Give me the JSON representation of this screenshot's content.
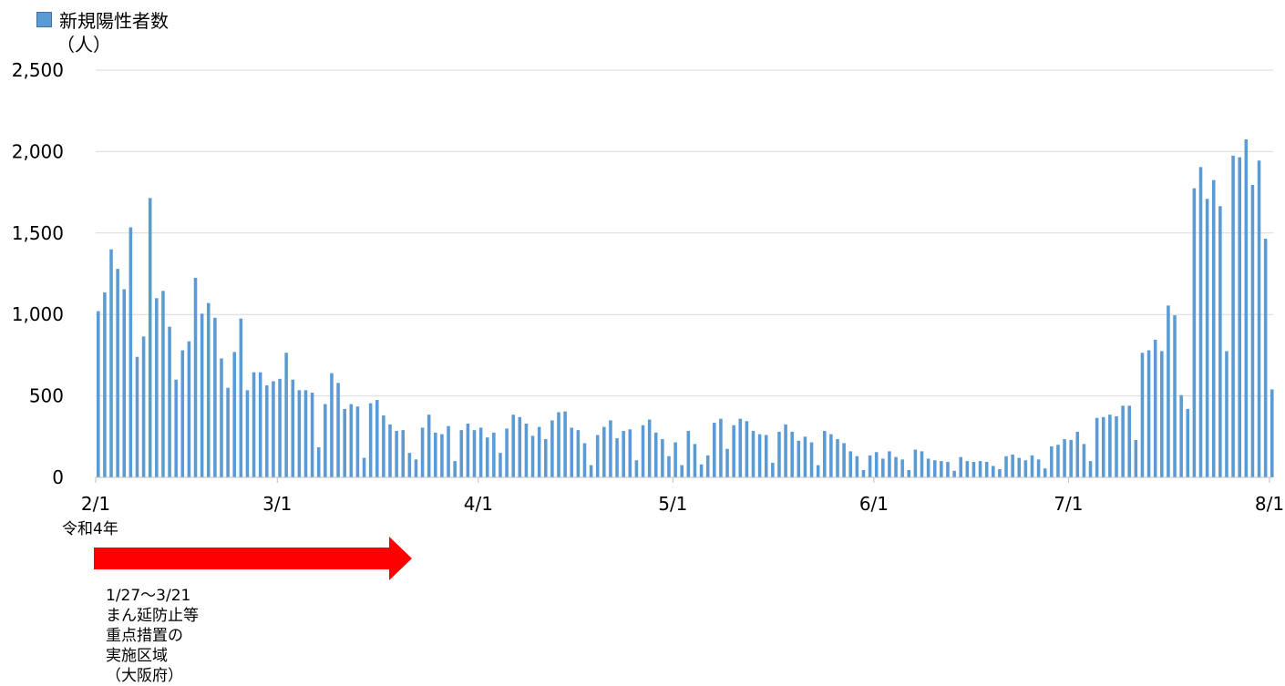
{
  "legend": {
    "label": "新規陽性者数",
    "color": "#5b9bd5"
  },
  "unit_label": "（人）",
  "era_label": "令和4年",
  "period": {
    "lines": [
      "1/27～3/21",
      "まん延防止等",
      "重点措置の",
      "実施区域",
      "（大阪府）"
    ],
    "arrow_color": "#ff0000",
    "arrow_start": "2/1",
    "arrow_end": "3/16"
  },
  "chart_data": {
    "type": "bar",
    "title": "",
    "xlabel": "",
    "ylabel": "（人）",
    "ylim": [
      0,
      2500
    ],
    "yticks": [
      0,
      500,
      1000,
      1500,
      2000,
      2500
    ],
    "ytick_labels": [
      "0",
      "500",
      "1,000",
      "1,500",
      "2,000",
      "2,500"
    ],
    "grid": true,
    "legend_position": "top-left",
    "start_date": "2/1",
    "x_ticks": [
      {
        "label": "2/1",
        "day_index": 0
      },
      {
        "label": "3/1",
        "day_index": 28
      },
      {
        "label": "4/1",
        "day_index": 59
      },
      {
        "label": "5/1",
        "day_index": 89
      },
      {
        "label": "6/1",
        "day_index": 120
      },
      {
        "label": "7/1",
        "day_index": 150
      },
      {
        "label": "8/1",
        "day_index": 181
      }
    ],
    "series": [
      {
        "name": "新規陽性者数",
        "color": "#5b9bd5",
        "values": [
          1020,
          1135,
          1400,
          1280,
          1155,
          1535,
          740,
          865,
          1715,
          1100,
          1145,
          925,
          600,
          780,
          835,
          1225,
          1005,
          1070,
          980,
          730,
          550,
          770,
          975,
          535,
          645,
          645,
          565,
          590,
          605,
          765,
          600,
          535,
          535,
          520,
          185,
          450,
          640,
          580,
          420,
          450,
          435,
          120,
          455,
          475,
          380,
          325,
          285,
          290,
          150,
          110,
          305,
          385,
          275,
          265,
          315,
          100,
          290,
          330,
          290,
          305,
          245,
          275,
          150,
          300,
          385,
          370,
          330,
          255,
          310,
          235,
          350,
          400,
          405,
          305,
          290,
          210,
          75,
          260,
          310,
          350,
          240,
          285,
          295,
          105,
          320,
          355,
          275,
          235,
          130,
          215,
          75,
          285,
          205,
          80,
          135,
          335,
          360,
          175,
          320,
          360,
          345,
          285,
          265,
          260,
          90,
          280,
          325,
          280,
          225,
          250,
          215,
          75,
          285,
          265,
          235,
          210,
          160,
          130,
          45,
          135,
          155,
          115,
          160,
          125,
          110,
          45,
          170,
          160,
          115,
          105,
          100,
          95,
          40,
          125,
          100,
          95,
          100,
          95,
          70,
          50,
          130,
          140,
          120,
          105,
          135,
          110,
          55,
          190,
          200,
          235,
          230,
          280,
          205,
          100,
          365,
          370,
          385,
          375,
          440,
          440,
          230,
          765,
          780,
          845,
          775,
          1055,
          995,
          505,
          420,
          1775,
          1905,
          1710,
          1825,
          1665,
          775,
          1975,
          1965,
          2075,
          1795,
          1945,
          1465,
          540
        ]
      }
    ]
  }
}
